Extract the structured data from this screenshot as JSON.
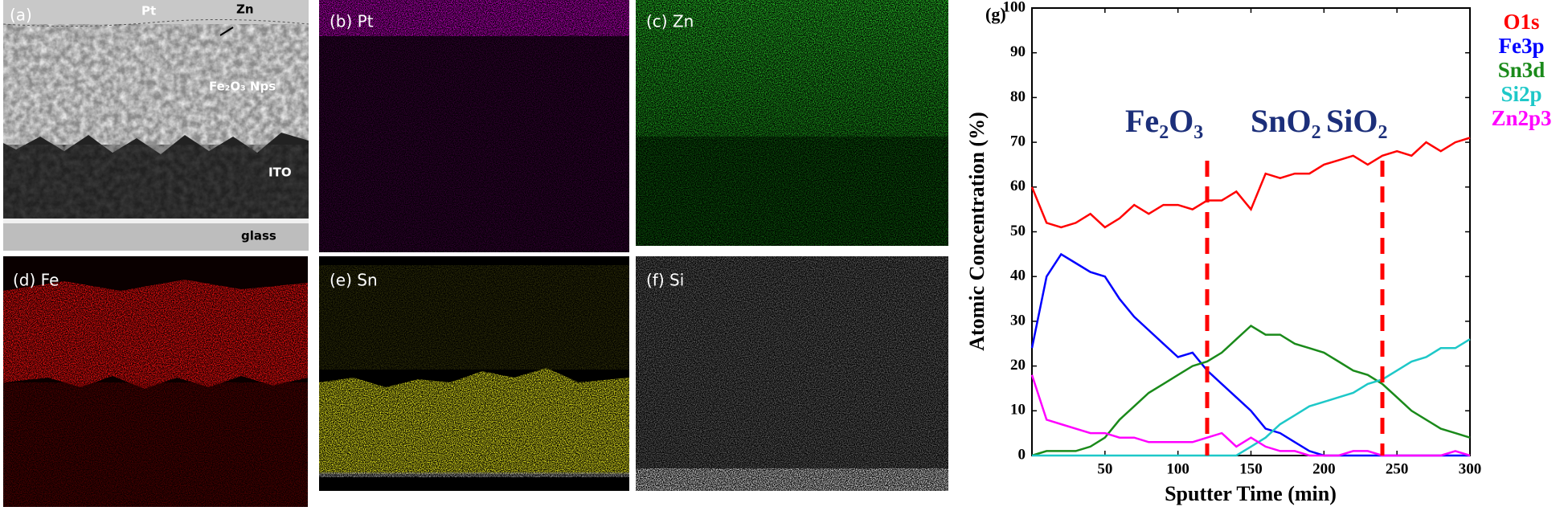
{
  "panels": {
    "a": {
      "label": "(a)",
      "pt": "Pt",
      "zn": "Zn",
      "layer": "Fe₂O₃ Nps",
      "ito": "ITO",
      "glass": "glass"
    },
    "b": "(b)  Pt",
    "c": "(c)  Zn",
    "d": "(d)  Fe",
    "e": "(e)  Sn",
    "f": "(f)  Si"
  },
  "chart_data": {
    "type": "line",
    "panel_label": "(g)",
    "x_label": "Sputter Time (min)",
    "y_label": "Atomic Concentration (%)",
    "x": [
      0,
      10,
      20,
      30,
      40,
      50,
      60,
      70,
      80,
      90,
      100,
      110,
      120,
      130,
      140,
      150,
      160,
      170,
      180,
      190,
      200,
      210,
      220,
      230,
      240,
      250,
      260,
      270,
      280,
      290,
      300
    ],
    "series": [
      {
        "name": "O1s",
        "color": "#ff0000",
        "values": [
          60,
          52,
          51,
          52,
          54,
          51,
          53,
          56,
          54,
          56,
          56,
          55,
          57,
          57,
          59,
          55,
          63,
          62,
          63,
          63,
          65,
          66,
          67,
          65,
          67,
          68,
          67,
          70,
          68,
          70,
          71
        ]
      },
      {
        "name": "Fe3p",
        "color": "#0000ff",
        "values": [
          24,
          40,
          45,
          43,
          41,
          40,
          35,
          31,
          28,
          25,
          22,
          23,
          19,
          16,
          13,
          10,
          6,
          5,
          3,
          1,
          0,
          0,
          0,
          0,
          0,
          0,
          0,
          0,
          0,
          0,
          0
        ]
      },
      {
        "name": "Sn3d",
        "color": "#1a8a1a",
        "values": [
          0,
          1,
          1,
          1,
          2,
          4,
          8,
          11,
          14,
          16,
          18,
          20,
          21,
          23,
          26,
          29,
          27,
          27,
          25,
          24,
          23,
          21,
          19,
          18,
          16,
          13,
          10,
          8,
          6,
          5,
          4
        ]
      },
      {
        "name": "Si2p",
        "color": "#1ec8c8",
        "values": [
          0,
          0,
          0,
          0,
          0,
          0,
          0,
          0,
          0,
          0,
          0,
          0,
          0,
          0,
          0,
          2,
          4,
          7,
          9,
          11,
          12,
          13,
          14,
          16,
          17,
          19,
          21,
          22,
          24,
          24,
          26
        ]
      },
      {
        "name": "Zn2p3",
        "color": "#ff00ff",
        "values": [
          18,
          8,
          7,
          6,
          5,
          5,
          4,
          4,
          3,
          3,
          3,
          3,
          4,
          5,
          2,
          4,
          2,
          1,
          1,
          0,
          0,
          0,
          1,
          1,
          0,
          0,
          0,
          0,
          0,
          1,
          0
        ]
      }
    ],
    "dividers": [
      120,
      240
    ],
    "divider_color": "#ff0000",
    "regions": [
      "Fe₂O₃",
      "SnO₂",
      "SiO₂"
    ],
    "xlim": [
      0,
      300
    ],
    "xticks": [
      50,
      100,
      150,
      200,
      250,
      300
    ],
    "ylim": [
      0,
      100
    ],
    "yticks": [
      0,
      10,
      20,
      30,
      40,
      50,
      60,
      70,
      80,
      90,
      100
    ]
  }
}
